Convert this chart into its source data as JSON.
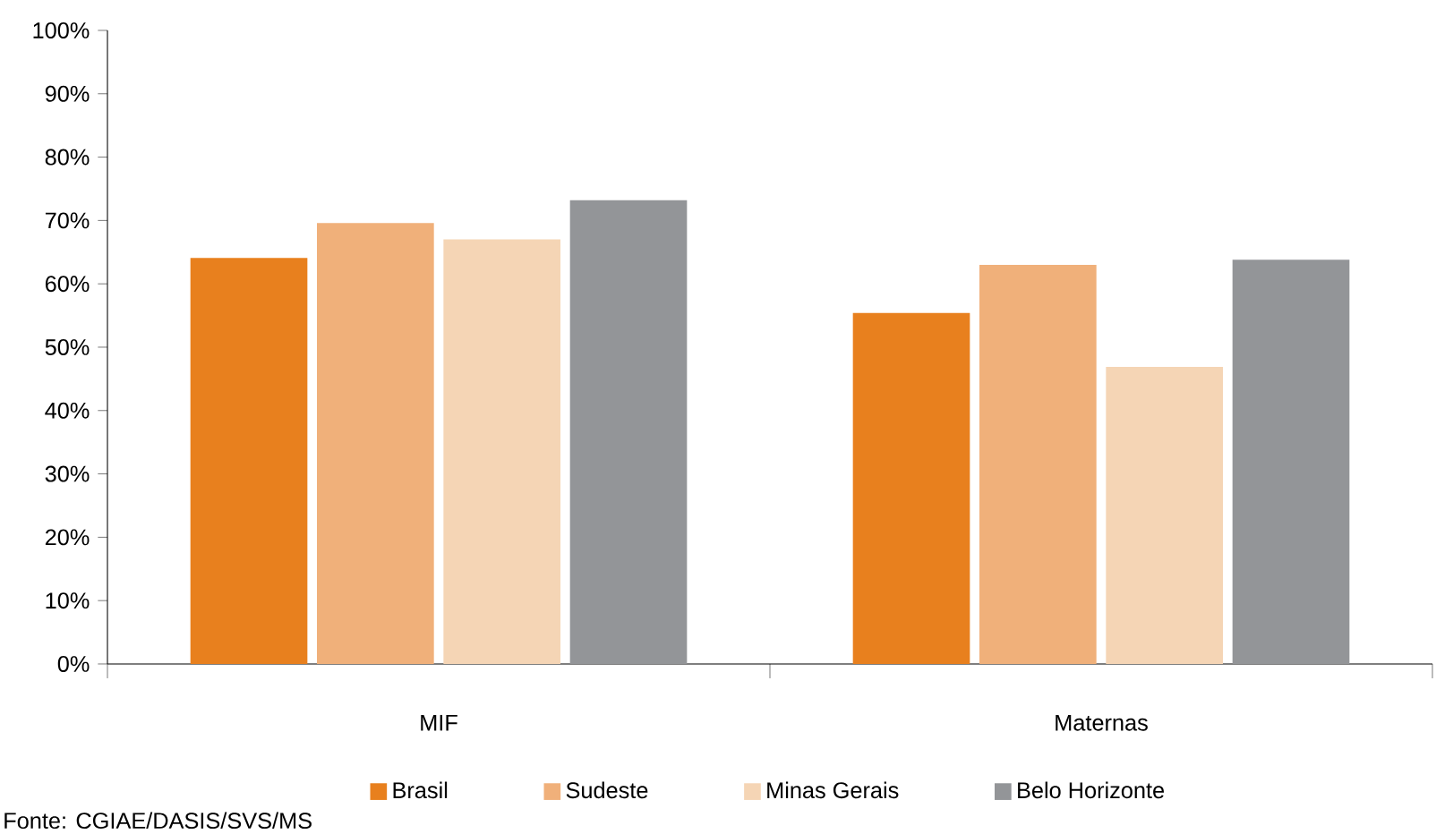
{
  "chart_data": {
    "type": "bar",
    "categories": [
      "MIF",
      "Maternas"
    ],
    "series": [
      {
        "name": "Brasil",
        "color": "#e8801e",
        "values": [
          64.1,
          55.4
        ]
      },
      {
        "name": "Sudeste",
        "color": "#f0b07a",
        "values": [
          69.6,
          63.0
        ]
      },
      {
        "name": "Minas Gerais",
        "color": "#f5d5b5",
        "values": [
          67.0,
          46.9
        ]
      },
      {
        "name": "Belo Horizonte",
        "color": "#939598",
        "values": [
          73.2,
          63.8
        ]
      }
    ],
    "ylim": [
      0,
      100
    ],
    "yticks": [
      {
        "value": 0,
        "label": "0%"
      },
      {
        "value": 10,
        "label": "10%"
      },
      {
        "value": 20,
        "label": "20%"
      },
      {
        "value": 30,
        "label": "30%"
      },
      {
        "value": 40,
        "label": "40%"
      },
      {
        "value": 50,
        "label": "50%"
      },
      {
        "value": 60,
        "label": "60%"
      },
      {
        "value": 70,
        "label": "70%"
      },
      {
        "value": 80,
        "label": "80%"
      },
      {
        "value": 90,
        "label": "90%"
      },
      {
        "value": 100,
        "label": "100%"
      }
    ],
    "legend": "bottom",
    "annotations": [
      "Fonte: CGIAE/DASIS/SVS/MS"
    ]
  }
}
